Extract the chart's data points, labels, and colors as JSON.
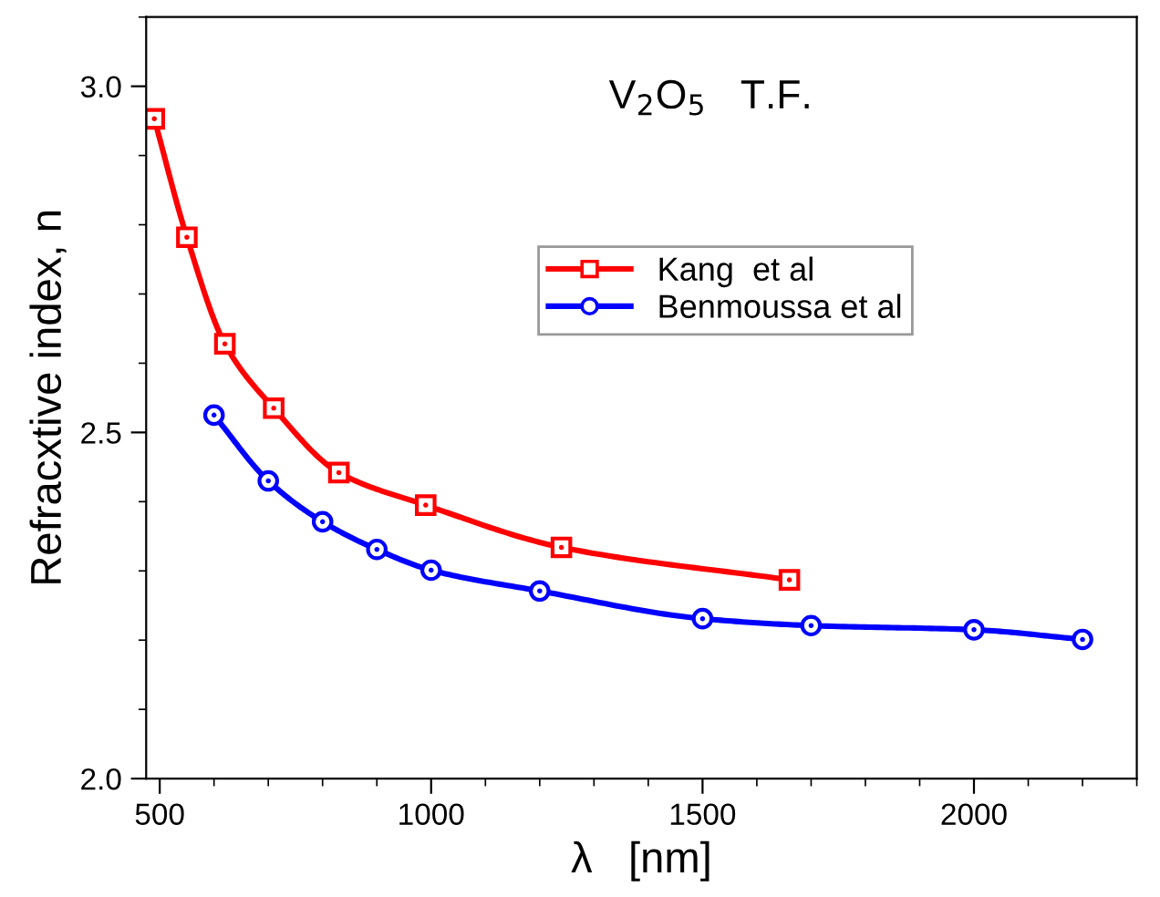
{
  "chart_data": {
    "type": "line",
    "xlabel": "λ   [nm]",
    "ylabel": "Refracxtive index, n",
    "annotations": [
      "V$_{2}$O$_{5}$   T.F."
    ],
    "xlim": [
      475,
      2300
    ],
    "xticks": [
      500,
      1000,
      1500,
      2000
    ],
    "ylim": [
      2.0,
      3.1
    ],
    "yticks": [
      {
        "value": 2.0,
        "label": "2.0"
      },
      {
        "value": 2.5,
        "label": "2.5"
      },
      {
        "value": 3.0,
        "label": "3.0"
      }
    ],
    "grid": false,
    "legend": "top right",
    "series": [
      {
        "name": "Kang  et al",
        "color": "#ff0000",
        "marker": "square",
        "x": [
          490,
          550,
          620,
          710,
          830,
          990,
          1240,
          1660
        ],
        "values": [
          2.953,
          2.782,
          2.628,
          2.535,
          2.442,
          2.395,
          2.334,
          2.287
        ]
      },
      {
        "name": "Benmoussa et al",
        "color": "#0000ff",
        "marker": "circle",
        "x": [
          600,
          700,
          800,
          900,
          1000,
          1200,
          1500,
          1700,
          2000,
          2200
        ],
        "values": [
          2.525,
          2.43,
          2.371,
          2.331,
          2.301,
          2.271,
          2.231,
          2.221,
          2.215,
          2.201
        ]
      }
    ]
  }
}
